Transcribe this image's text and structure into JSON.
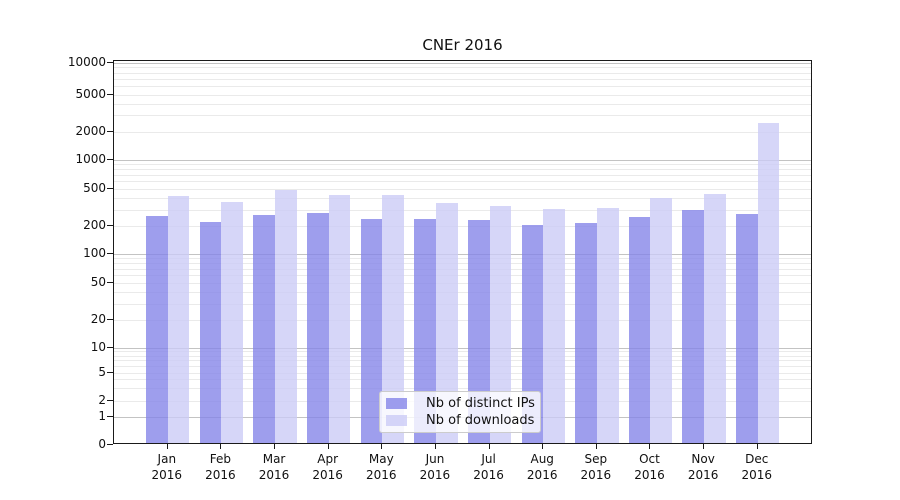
{
  "title": "CNEr 2016",
  "legend": {
    "position": "lower center",
    "items": [
      {
        "label": "Nb of distinct IPs",
        "color": "#8383e8"
      },
      {
        "label": "Nb of downloads",
        "color": "#cbcbf6"
      }
    ]
  },
  "axes": {
    "y_tick_labels": [
      "0",
      "1",
      "2",
      "5",
      "10",
      "20",
      "50",
      "100",
      "200",
      "500",
      "1000",
      "2000",
      "5000",
      "10000"
    ],
    "x_tick_year": "2016",
    "x_tick_months": [
      "Jan",
      "Feb",
      "Mar",
      "Apr",
      "May",
      "Jun",
      "Jul",
      "Aug",
      "Sep",
      "Oct",
      "Nov",
      "Dec"
    ]
  },
  "chart_data": {
    "type": "bar",
    "title": "CNEr 2016",
    "categories": [
      "Jan 2016",
      "Feb 2016",
      "Mar 2016",
      "Apr 2016",
      "May 2016",
      "Jun 2016",
      "Jul 2016",
      "Aug 2016",
      "Sep 2016",
      "Oct 2016",
      "Nov 2016",
      "Dec 2016"
    ],
    "series": [
      {
        "name": "Nb of distinct IPs",
        "color": "#8383e8",
        "values": [
          245,
          210,
          250,
          260,
          225,
          228,
          222,
          197,
          207,
          240,
          280,
          258
        ]
      },
      {
        "name": "Nb of downloads",
        "color": "#cbcbf6",
        "values": [
          400,
          345,
          465,
          415,
          410,
          340,
          315,
          290,
          300,
          380,
          420,
          2350
        ]
      }
    ],
    "xlabel": "",
    "ylabel": "",
    "y_scale": "symlog",
    "y_ticks": [
      0,
      1,
      2,
      5,
      10,
      20,
      50,
      100,
      200,
      500,
      1000,
      2000,
      5000,
      10000
    ],
    "ylim": [
      0,
      10000
    ],
    "grid": true,
    "gridline_major_color": "#c3c3c3",
    "gridline_minor_color": "#eaeaea",
    "legend_position": "lower center"
  }
}
